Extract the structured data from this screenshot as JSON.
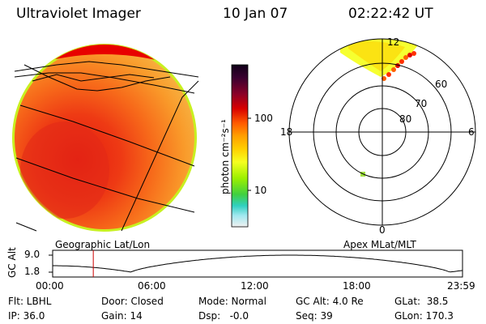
{
  "header": {
    "instrument": "Ultraviolet Imager",
    "date": "10 Jan 07",
    "time": "02:22:42 UT"
  },
  "colorbar": {
    "unit_label": "photon cm⁻²s⁻¹",
    "tick_labels": [
      "100",
      "10"
    ]
  },
  "panels": {
    "left_caption": "Geographic Lat/Lon",
    "right_caption": "Apex MLat/MLT"
  },
  "polar_plot": {
    "mlt_labels": [
      "12",
      "18",
      "6",
      "0"
    ],
    "lat_labels": [
      "60",
      "70",
      "80"
    ]
  },
  "timeline": {
    "ylabel": "GC Alt",
    "y_ticks": [
      "9.0",
      "1.8"
    ],
    "x_ticks": [
      "00:00",
      "06:00",
      "12:00",
      "18:00",
      "23:59"
    ],
    "current_time_hours": 2.378
  },
  "status": {
    "row1": [
      "Flt: LBHL",
      "Door: Closed",
      "Mode: Normal",
      "GC Alt: 4.0 Re",
      "GLat:  38.5"
    ],
    "row2": [
      "IP: 36.0",
      "Gain: 14",
      "Dsp:   -0.0",
      "Seq: 39",
      "GLon: 170.3"
    ]
  }
}
